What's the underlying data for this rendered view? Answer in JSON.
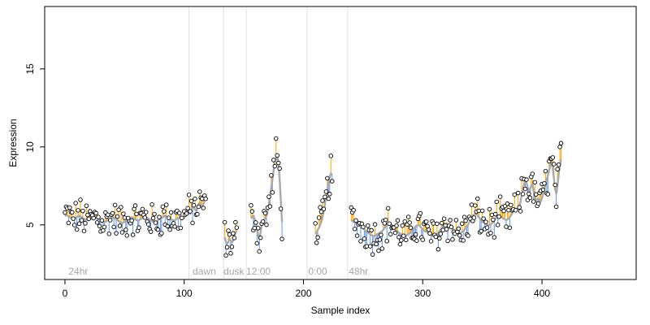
{
  "chart_data": {
    "type": "scatter",
    "title": "",
    "xlabel": "Sample index",
    "ylabel": "Expression",
    "xlim": [
      -17,
      479
    ],
    "ylim": [
      1.5,
      19.0
    ],
    "x_ticks": [
      0,
      100,
      200,
      300,
      400
    ],
    "y_ticks": [
      5,
      10,
      15
    ],
    "grid": false,
    "legend": "none",
    "colors": {
      "points_fill": "#ffffff",
      "points_stroke": "#000000",
      "fit_line": "#a9a9a9",
      "residual_positive": "#ffa500",
      "residual_negative": "#6495ed",
      "phase_lines": "#e0e0e0",
      "phase_labels": "#a6a6a6",
      "axis": "#000000"
    },
    "phase_markers": [
      {
        "x": 104,
        "label": ""
      },
      {
        "x": 133,
        "label": ""
      },
      {
        "x": 152,
        "label": ""
      },
      {
        "x": 203,
        "label": ""
      },
      {
        "x": 237,
        "label": ""
      }
    ],
    "phase_labels": [
      {
        "x": 3,
        "label": "24hr"
      },
      {
        "x": 107,
        "label": "dawn"
      },
      {
        "x": 133,
        "label": "dusk"
      },
      {
        "x": 152,
        "label": "12:00"
      },
      {
        "x": 204,
        "label": "0:00"
      },
      {
        "x": 238,
        "label": "48hr"
      }
    ],
    "fit_segments": [
      {
        "start": 0,
        "levels": [
          5.6,
          5.6,
          5.5,
          5.4,
          5.4,
          5.5,
          5.6,
          5.5,
          5.4,
          5.3,
          5.3,
          5.4,
          5.5,
          5.5,
          5.4,
          5.3,
          5.2,
          5.2,
          5.3,
          5.4,
          5.5,
          5.4,
          5.3,
          5.2,
          5.1,
          5.2,
          5.3,
          5.4,
          5.5,
          5.4,
          5.3,
          5.3,
          5.4,
          5.5,
          5.5,
          5.4,
          5.3,
          5.2,
          5.2,
          5.3,
          5.4,
          5.5,
          5.6,
          5.5,
          5.4,
          5.3,
          5.3,
          5.4,
          5.5,
          5.6
        ]
      },
      {
        "start": 100,
        "levels": [
          5.4,
          5.6,
          5.9,
          6.0,
          5.8,
          5.7,
          5.9,
          6.1,
          6.2,
          6.0,
          5.9,
          6.1,
          6.3,
          6.4,
          6.2,
          6.1,
          6.3,
          6.6,
          6.8
        ]
      },
      {
        "start": 134,
        "levels": [
          4.2,
          3.9,
          3.8,
          3.9,
          4.1,
          4.0,
          3.9,
          4.0,
          4.3,
          4.5,
          4.6
        ]
      },
      {
        "start": 156,
        "levels": [
          5.4,
          5.5,
          5.6,
          5.4,
          5.2,
          4.8,
          4.3,
          4.2,
          4.5,
          5.0,
          5.3,
          5.3,
          5.4,
          5.6,
          5.9,
          6.3,
          6.8,
          7.4,
          7.9,
          8.5,
          9.0,
          9.3,
          9.4,
          8.9,
          8.0,
          6.6,
          5.2
        ]
      },
      {
        "start": 210,
        "levels": [
          4.4,
          4.5,
          4.7,
          4.8,
          5.0,
          5.2,
          5.5,
          5.9,
          6.3,
          6.8,
          7.2,
          7.7,
          8.1,
          8.3,
          8.2
        ]
      },
      {
        "start": 240,
        "levels": [
          5.3,
          5.2,
          5.1,
          5.0,
          4.9,
          4.8,
          4.6,
          4.5,
          4.4,
          4.3,
          4.3,
          4.4,
          4.5,
          4.6,
          4.8,
          5.0,
          5.1,
          5.0,
          4.8,
          4.6,
          4.5,
          4.4,
          4.3,
          4.3,
          4.4,
          4.5,
          4.7,
          4.9,
          5.0,
          4.9,
          4.7,
          4.6,
          4.5,
          4.4,
          4.3,
          4.3,
          4.4,
          4.6,
          4.8,
          5.0,
          5.1,
          5.0,
          4.8,
          4.7,
          4.6,
          4.5,
          4.5,
          4.6,
          4.8,
          5.0,
          5.3,
          5.6,
          5.7,
          5.6,
          5.4,
          5.2,
          5.1,
          5.0,
          5.0,
          5.1,
          5.3,
          5.5,
          5.6,
          5.5,
          5.4,
          5.3,
          5.4,
          5.6,
          5.9,
          6.1
        ]
      },
      {
        "start": 380,
        "levels": [
          6.0,
          6.2,
          6.5,
          6.9,
          7.3,
          7.6,
          7.8,
          7.7,
          7.4,
          7.2,
          7.3,
          7.5,
          7.6,
          7.2,
          6.7,
          6.5,
          6.6,
          6.7,
          6.6,
          6.5,
          6.7,
          7.0,
          7.3,
          7.6,
          7.9,
          8.2,
          8.5,
          8.8,
          9.0,
          8.7,
          8.0,
          7.3,
          7.0,
          7.5,
          8.2,
          8.8,
          9.2
        ]
      }
    ],
    "points_note": ""
  }
}
